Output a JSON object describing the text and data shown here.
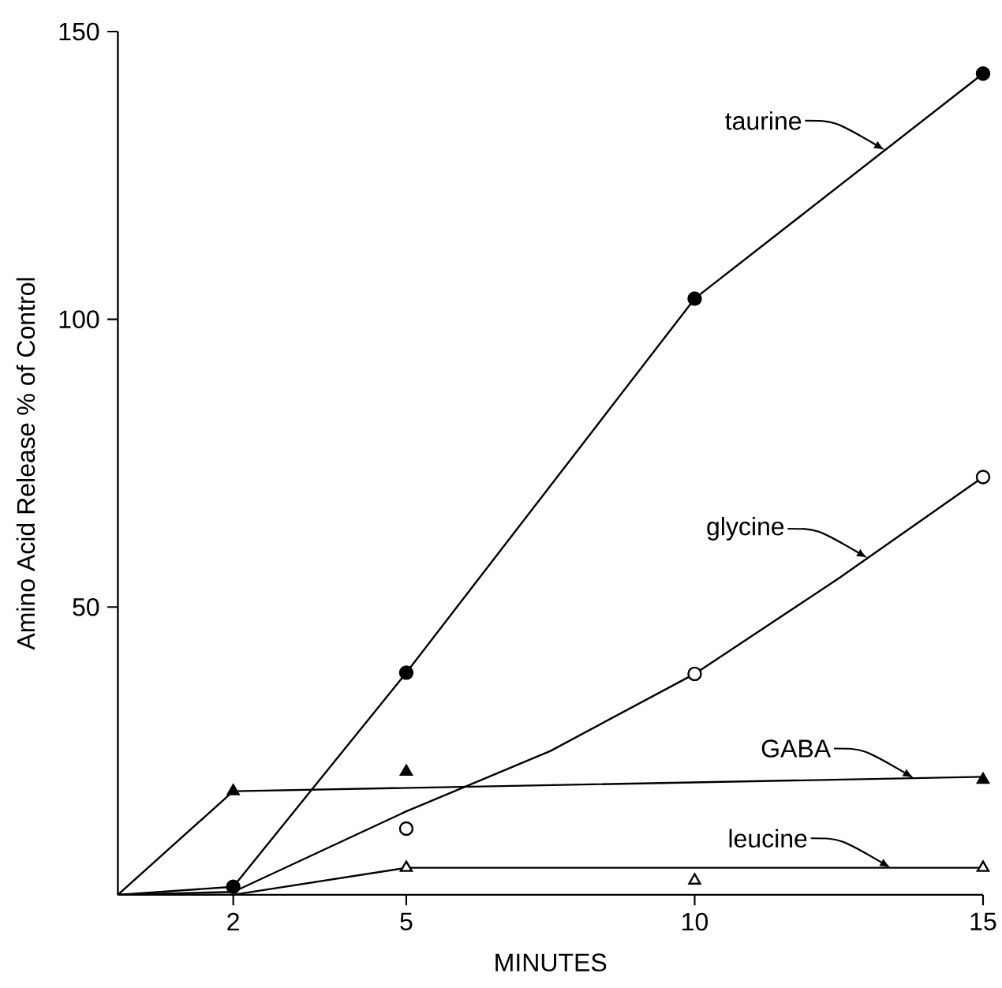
{
  "chart_data": {
    "type": "line",
    "xlabel": "MINUTES",
    "ylabel": "Amino Acid Release % of Control",
    "xlim": [
      0,
      15
    ],
    "ylim": [
      0,
      150
    ],
    "xticks": [
      2,
      5,
      10,
      15
    ],
    "yticks": [
      50,
      100,
      150
    ],
    "grid": false,
    "series": [
      {
        "marker": "none",
        "line_style": "solid",
        "color": "#000000",
        "x": [
          0,
          2,
          5,
          10,
          15
        ],
        "values": [
          0,
          1.4,
          38.6,
          103.6,
          142.7
        ]
      },
      {
        "marker": "none",
        "line_style": "solid",
        "color": "#000000",
        "x": [
          0,
          2,
          5,
          7.5,
          10,
          12.5,
          15
        ],
        "values": [
          0,
          0.5,
          14.5,
          25,
          38.4,
          55,
          72.6
        ]
      },
      {
        "marker": "none",
        "line_style": "solid",
        "color": "#000000",
        "x": [
          0,
          2,
          15
        ],
        "values": [
          0,
          18,
          20.5
        ]
      },
      {
        "marker": "none",
        "line_style": "solid",
        "color": "#000000",
        "x": [
          0,
          2,
          5,
          15
        ],
        "values": [
          0,
          0,
          4.7,
          4.7
        ]
      },
      {
        "type": "scatter",
        "marker": "circle",
        "color": "#000000",
        "x": [
          2,
          5,
          10,
          15
        ],
        "values": [
          1.4,
          38.6,
          103.6,
          142.7
        ]
      },
      {
        "type": "scatter",
        "marker": "circle",
        "color": "#ffffff",
        "x": [
          5,
          10,
          15
        ],
        "values": [
          11.5,
          38.4,
          72.6
        ]
      },
      {
        "type": "scatter",
        "marker": "triangle",
        "color": "#000000",
        "x": [
          2,
          5,
          15
        ],
        "values": [
          18,
          21.4,
          20
        ]
      },
      {
        "type": "scatter",
        "marker": "triangle",
        "color": "#ffffff",
        "x": [
          5,
          10,
          15
        ],
        "values": [
          4.7,
          2.5,
          4.7
        ]
      }
    ],
    "annotations": [
      {
        "text": "taurine",
        "x": 13.3,
        "y": 129.4
      },
      {
        "text": "glycine",
        "x": 13.0,
        "y": 58.5
      },
      {
        "text": "GABA",
        "x": 13.8,
        "y": 20.3
      },
      {
        "text": "leucine",
        "x": 13.4,
        "y": 4.7
      }
    ]
  }
}
